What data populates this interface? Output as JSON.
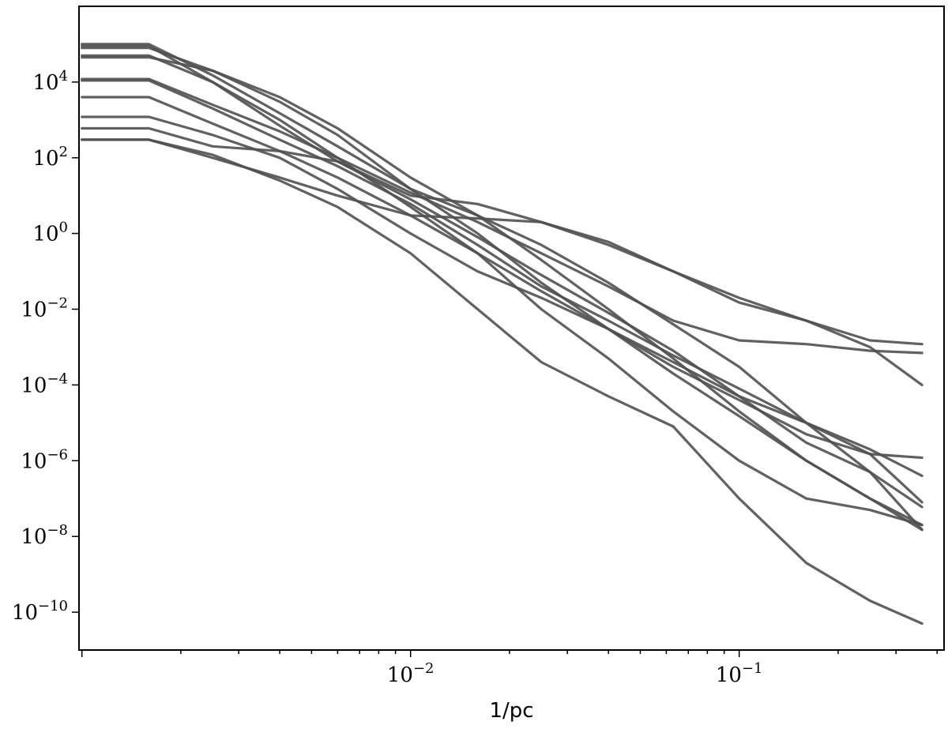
{
  "chart_data": {
    "type": "line",
    "title": "",
    "xlabel": "1/pc",
    "ylabel": "",
    "xscale": "log",
    "yscale": "log",
    "xlim": [
      0.00098,
      0.42
    ],
    "ylim": [
      1e-11,
      1000000.0
    ],
    "grid": false,
    "line_color": "#505050",
    "x_ticks": [
      {
        "value": 0.01,
        "base": "10",
        "exp": "−2"
      },
      {
        "value": 0.1,
        "base": "10",
        "exp": "−1"
      }
    ],
    "y_ticks": [
      {
        "value": 1e-10,
        "base": "10",
        "exp": "−10"
      },
      {
        "value": 1e-08,
        "base": "10",
        "exp": "−8"
      },
      {
        "value": 1e-06,
        "base": "10",
        "exp": "−6"
      },
      {
        "value": 0.0001,
        "base": "10",
        "exp": "−4"
      },
      {
        "value": 0.01,
        "base": "10",
        "exp": "−2"
      },
      {
        "value": 1,
        "base": "10",
        "exp": "0"
      },
      {
        "value": 100,
        "base": "10",
        "exp": "2"
      },
      {
        "value": 10000,
        "base": "10",
        "exp": "4"
      }
    ],
    "series": [
      {
        "x": [
          0.001,
          0.0016,
          0.0025,
          0.004,
          0.006,
          0.01,
          0.016,
          0.025,
          0.04,
          0.063,
          0.1,
          0.16,
          0.25,
          0.36
        ],
        "y": [
          100000.0,
          100000.0,
          15000.0,
          1500,
          200,
          15,
          3,
          0.5,
          0.05,
          0.004,
          0.0003,
          1e-05,
          5e-07,
          1.5e-08
        ]
      },
      {
        "x": [
          0.001,
          0.0016,
          0.0025,
          0.004,
          0.006,
          0.01,
          0.016,
          0.025,
          0.04,
          0.063,
          0.1,
          0.16,
          0.25,
          0.36
        ],
        "y": [
          90000.0,
          90000.0,
          10000.0,
          700,
          80,
          8,
          0.8,
          0.08,
          0.008,
          0.0008,
          5e-05,
          3e-06,
          5e-07,
          6e-08
        ]
      },
      {
        "x": [
          0.001,
          0.0016,
          0.0025,
          0.004,
          0.006,
          0.01,
          0.016,
          0.025,
          0.04,
          0.063,
          0.1,
          0.16,
          0.25,
          0.36
        ],
        "y": [
          80000.0,
          80000.0,
          20000.0,
          4000,
          600,
          30,
          3,
          0.2,
          0.01,
          0.0005,
          2e-05,
          1e-06,
          1e-07,
          2e-08
        ]
      },
      {
        "x": [
          0.001,
          0.0016,
          0.0025,
          0.004,
          0.006,
          0.01,
          0.016,
          0.025,
          0.04,
          0.063,
          0.1,
          0.16,
          0.25,
          0.36
        ],
        "y": [
          45000.0,
          45000.0,
          20000.0,
          3000,
          400,
          15,
          1,
          0.05,
          0.003,
          0.0003,
          4e-05,
          5e-06,
          1.5e-06,
          1.2e-06
        ]
      },
      {
        "x": [
          0.001,
          0.0016,
          0.0025,
          0.004,
          0.006,
          0.01,
          0.016,
          0.025,
          0.04,
          0.063,
          0.1,
          0.16,
          0.25,
          0.36
        ],
        "y": [
          12000.0,
          12000.0,
          2500,
          500,
          100,
          12,
          2,
          0.3,
          0.04,
          0.005,
          0.0015,
          0.0012,
          0.0008,
          0.0007
        ]
      },
      {
        "x": [
          0.001,
          0.0016,
          0.0025,
          0.004,
          0.006,
          0.01,
          0.016,
          0.025,
          0.04,
          0.063,
          0.1,
          0.16,
          0.25,
          0.36
        ],
        "y": [
          11000.0,
          11000.0,
          2000,
          300,
          60,
          6,
          0.5,
          0.04,
          0.005,
          0.0006,
          8e-05,
          1e-05,
          1.5e-06,
          8e-08
        ]
      },
      {
        "x": [
          0.001,
          0.0016,
          0.0025,
          0.004,
          0.006,
          0.01,
          0.016,
          0.025,
          0.04,
          0.063,
          0.1,
          0.16,
          0.25,
          0.36
        ],
        "y": [
          4000.0,
          4000.0,
          800,
          150,
          30,
          3,
          0.3,
          0.03,
          0.003,
          0.0002,
          1.5e-05,
          1e-06,
          1e-07,
          1.5e-08
        ]
      },
      {
        "x": [
          0.001,
          0.0016,
          0.0025,
          0.004,
          0.006,
          0.01,
          0.016,
          0.025,
          0.04,
          0.063,
          0.1,
          0.16,
          0.25,
          0.36
        ],
        "y": [
          1200.0,
          1200.0,
          400,
          100,
          15,
          1,
          0.1,
          0.02,
          0.003,
          0.0004,
          5e-05,
          1e-05,
          2e-06,
          4e-07
        ]
      },
      {
        "x": [
          0.001,
          0.0016,
          0.0025,
          0.004,
          0.006,
          0.01,
          0.016,
          0.025,
          0.04,
          0.063,
          0.1,
          0.16,
          0.25,
          0.36
        ],
        "y": [
          600,
          600,
          200,
          150,
          80,
          10,
          6,
          2,
          0.5,
          0.1,
          0.02,
          0.005,
          0.001,
          0.0001
        ]
      },
      {
        "x": [
          0.001,
          0.0016,
          0.0025,
          0.004,
          0.006,
          0.01,
          0.016,
          0.025,
          0.04,
          0.063,
          0.1,
          0.16,
          0.25,
          0.36
        ],
        "y": [
          300,
          300,
          100,
          30,
          10,
          3,
          2.5,
          2,
          0.6,
          0.1,
          0.015,
          0.005,
          0.0015,
          0.0012
        ]
      },
      {
        "x": [
          0.001,
          0.0016,
          0.0025,
          0.004,
          0.006,
          0.01,
          0.016,
          0.025,
          0.04,
          0.063,
          0.1,
          0.16,
          0.25,
          0.36
        ],
        "y": [
          50000.0,
          50000.0,
          10000.0,
          1000,
          100,
          5,
          0.3,
          0.01,
          0.0005,
          2e-05,
          1e-06,
          1e-07,
          5e-08,
          2e-08
        ]
      },
      {
        "x": [
          0.001,
          0.0016,
          0.0025,
          0.004,
          0.006,
          0.01,
          0.016,
          0.025,
          0.04,
          0.063,
          0.1,
          0.16,
          0.25,
          0.36
        ],
        "y": [
          300,
          300,
          120,
          25,
          5,
          0.3,
          0.01,
          0.0004,
          5e-05,
          8e-06,
          1e-07,
          2e-09,
          2e-10,
          5e-11
        ]
      }
    ]
  }
}
